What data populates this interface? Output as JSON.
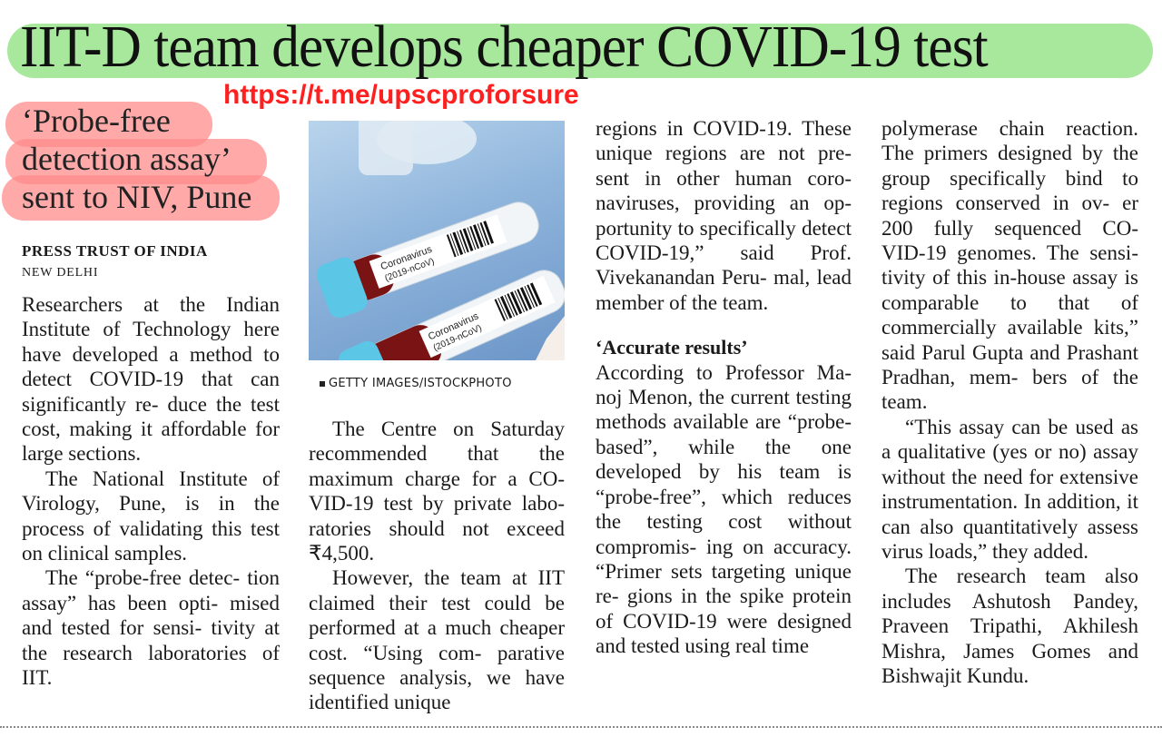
{
  "article": {
    "headline": "IIT-D team develops cheaper COVID-19 test",
    "promo_link": "https://t.me/upscproforsure",
    "subheadline_lines": [
      "‘Probe-free",
      "detection assay’",
      "sent to NIV, Pune"
    ],
    "byline": "PRESS TRUST OF INDIA",
    "dateline": "NEW DELHI",
    "photo_caption": "GETTY IMAGES/ISTOCKPHOTO",
    "photo_tube_labels": [
      "Coronavirus",
      "(2019-nCoV)",
      "Coronavirus",
      "(2019-nCoV)"
    ],
    "subhead_accurate": "‘Accurate results’",
    "col1": [
      "Researchers at the Indian Institute of Technology here have developed a method to detect COVID-19 that can significantly re- duce the test cost, making it affordable for large sections.",
      "The National Institute of Virology, Pune, is in the process of validating this test on clinical samples.",
      "The “probe-free detec- tion assay” has been opti- mised and tested for sensi- tivity at the research laboratories of IIT."
    ],
    "col2": [
      "The Centre on Saturday recommended that the maximum charge for a CO- VID-19 test by private labo- ratories should not exceed ₹4,500.",
      "However, the team at IIT claimed their test could be performed at a much cheaper cost. “Using com- parative sequence analysis, we have identified unique"
    ],
    "col3": [
      "regions in COVID-19. These unique regions are not pre- sent in other human coro- naviruses, providing an op- portunity to specifically detect COVID-19,” said Prof. Vivekanandan Peru- mal, lead member of the team.",
      "According to Professor Ma- noj Menon, the current testing methods available are “probe-based”, while the one developed by his team is “probe-free”, which reduces the testing cost without compromis- ing on accuracy. “Primer sets targeting unique re- gions in the spike protein of COVID-19 were designed and tested using real time"
    ],
    "col4": [
      "polymerase chain reaction. The primers designed by the group specifically bind to regions conserved in ov- er 200 fully sequenced CO- VID-19 genomes. The sensi- tivity of this in-house assay is comparable to that of commercially available kits,” said Parul Gupta and Prashant Pradhan, mem- bers of the team.",
      "“This assay can be used as a qualitative (yes or no) assay without the need for extensive instrumentation. In addition, it can also quantitatively assess virus loads,” they added.",
      "The research team also includes Ashutosh Pandey, Praveen Tripathi, Akhilesh Mishra, James Gomes and Bishwajit Kundu."
    ]
  },
  "colors": {
    "headline_highlight": "#9fe592",
    "subheadline_highlight": "#ff8c8c",
    "promo_link": "#ff1f1f",
    "tube_cap": "#5cc6e6",
    "sample_liquid": "#7a1414"
  }
}
